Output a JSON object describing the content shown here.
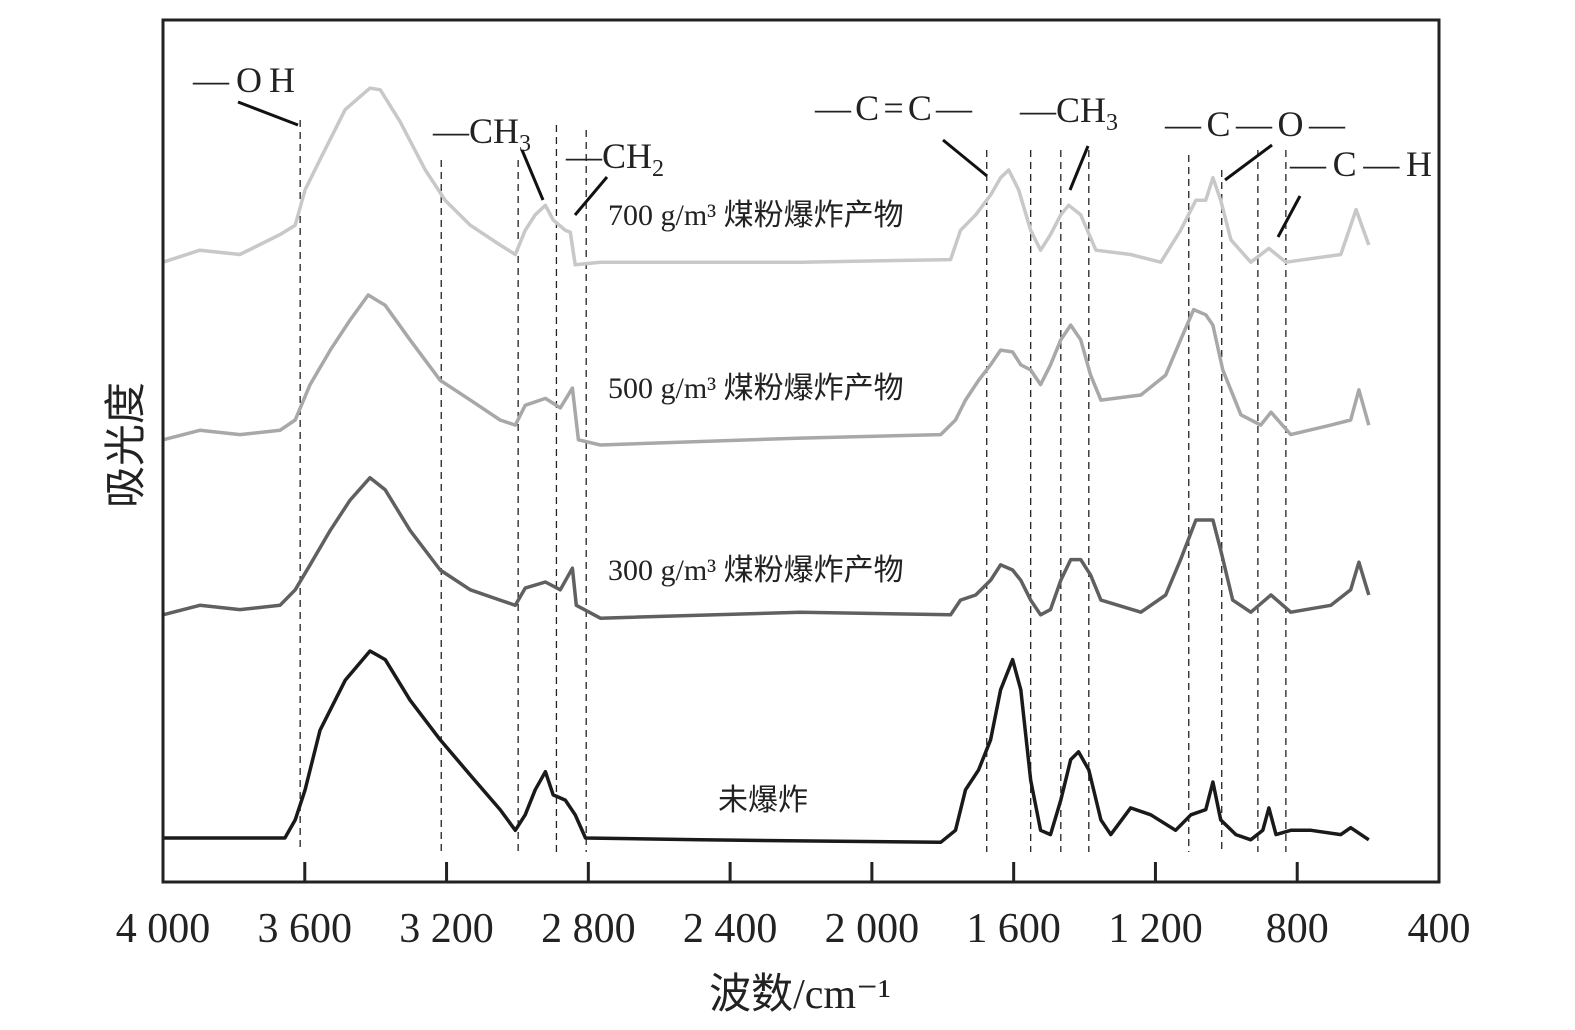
{
  "chart_data": {
    "type": "line",
    "xlabel": "波数/cm⁻¹",
    "ylabel": "吸光度",
    "xlim": [
      4000,
      400
    ],
    "ylim": [
      0,
      10
    ],
    "x_reversed": true,
    "grid": false,
    "legend": "none; series labeled inline above each curve",
    "tick_values": [
      4000,
      3600,
      3200,
      2800,
      2400,
      2000,
      1600,
      1200,
      800,
      400
    ],
    "tick_labels": [
      "4 000",
      "3 600",
      "3 200",
      "2 800",
      "2 400",
      "2 000",
      "1 600",
      "1 200",
      "800",
      "400"
    ],
    "reference_lines": [
      3613,
      3215,
      2998,
      2890,
      2806,
      1676,
      1552,
      1467,
      1388,
      1106,
      1013,
      911,
      832
    ],
    "annotations": [
      {
        "main": "—OH",
        "sub": "",
        "tail": ""
      },
      {
        "main": "—CH",
        "sub": "3",
        "tail": ""
      },
      {
        "main": "—CH",
        "sub": "2",
        "tail": ""
      },
      {
        "main": "—C=C—",
        "sub": "",
        "tail": ""
      },
      {
        "main": "—CH",
        "sub": "3",
        "tail": ""
      },
      {
        "main": "—C—O—",
        "sub": "",
        "tail": ""
      },
      {
        "main": "—C—H",
        "sub": "",
        "tail": ""
      }
    ],
    "series": [
      {
        "name": "700 g/m³ 煤粉爆炸产物",
        "color": "#c8c8c8",
        "points": [
          [
            4000,
            7.19
          ],
          [
            3896,
            7.33
          ],
          [
            3783,
            7.28
          ],
          [
            3670,
            7.51
          ],
          [
            3627,
            7.62
          ],
          [
            3599,
            8.03
          ],
          [
            3557,
            8.38
          ],
          [
            3486,
            8.96
          ],
          [
            3416,
            9.21
          ],
          [
            3387,
            9.19
          ],
          [
            3331,
            8.82
          ],
          [
            3260,
            8.26
          ],
          [
            3204,
            7.91
          ],
          [
            3133,
            7.62
          ],
          [
            3049,
            7.39
          ],
          [
            3006,
            7.28
          ],
          [
            2978,
            7.56
          ],
          [
            2950,
            7.74
          ],
          [
            2921,
            7.85
          ],
          [
            2899,
            7.68
          ],
          [
            2865,
            7.56
          ],
          [
            2851,
            7.54
          ],
          [
            2837,
            7.16
          ],
          [
            2766,
            7.19
          ],
          [
            2201,
            7.19
          ],
          [
            1778,
            7.22
          ],
          [
            1750,
            7.56
          ],
          [
            1707,
            7.74
          ],
          [
            1665,
            7.97
          ],
          [
            1637,
            8.17
          ],
          [
            1614,
            8.26
          ],
          [
            1586,
            8.03
          ],
          [
            1552,
            7.56
          ],
          [
            1524,
            7.33
          ],
          [
            1496,
            7.51
          ],
          [
            1467,
            7.74
          ],
          [
            1445,
            7.85
          ],
          [
            1411,
            7.74
          ],
          [
            1368,
            7.33
          ],
          [
            1270,
            7.28
          ],
          [
            1185,
            7.19
          ],
          [
            1129,
            7.56
          ],
          [
            1086,
            7.91
          ],
          [
            1058,
            7.91
          ],
          [
            1038,
            8.17
          ],
          [
            1016,
            7.91
          ],
          [
            987,
            7.45
          ],
          [
            931,
            7.19
          ],
          [
            880,
            7.35
          ],
          [
            832,
            7.19
          ],
          [
            677,
            7.28
          ],
          [
            634,
            7.8
          ],
          [
            598,
            7.39
          ]
        ]
      },
      {
        "name": "500 g/m³ 煤粉爆炸产物",
        "color": "#a8a8a8",
        "points": [
          [
            4000,
            5.13
          ],
          [
            3896,
            5.24
          ],
          [
            3783,
            5.19
          ],
          [
            3670,
            5.24
          ],
          [
            3627,
            5.36
          ],
          [
            3585,
            5.77
          ],
          [
            3528,
            6.17
          ],
          [
            3472,
            6.52
          ],
          [
            3421,
            6.81
          ],
          [
            3373,
            6.69
          ],
          [
            3303,
            6.29
          ],
          [
            3218,
            5.82
          ],
          [
            3133,
            5.59
          ],
          [
            3049,
            5.36
          ],
          [
            3006,
            5.3
          ],
          [
            2978,
            5.53
          ],
          [
            2921,
            5.61
          ],
          [
            2879,
            5.5
          ],
          [
            2845,
            5.73
          ],
          [
            2828,
            5.13
          ],
          [
            2766,
            5.07
          ],
          [
            2201,
            5.15
          ],
          [
            1806,
            5.19
          ],
          [
            1764,
            5.36
          ],
          [
            1736,
            5.59
          ],
          [
            1699,
            5.82
          ],
          [
            1665,
            6.0
          ],
          [
            1637,
            6.17
          ],
          [
            1603,
            6.15
          ],
          [
            1580,
            6.0
          ],
          [
            1552,
            5.94
          ],
          [
            1524,
            5.77
          ],
          [
            1496,
            6.0
          ],
          [
            1467,
            6.29
          ],
          [
            1439,
            6.46
          ],
          [
            1411,
            6.29
          ],
          [
            1383,
            5.88
          ],
          [
            1354,
            5.59
          ],
          [
            1241,
            5.65
          ],
          [
            1171,
            5.88
          ],
          [
            1129,
            6.29
          ],
          [
            1092,
            6.64
          ],
          [
            1058,
            6.58
          ],
          [
            1038,
            6.46
          ],
          [
            1010,
            5.94
          ],
          [
            959,
            5.42
          ],
          [
            903,
            5.3
          ],
          [
            874,
            5.45
          ],
          [
            818,
            5.19
          ],
          [
            705,
            5.3
          ],
          [
            649,
            5.36
          ],
          [
            626,
            5.71
          ],
          [
            598,
            5.3
          ]
        ]
      },
      {
        "name": "300 g/m³ 煤粉爆炸产物",
        "color": "#606060",
        "points": [
          [
            4000,
            3.1
          ],
          [
            3896,
            3.21
          ],
          [
            3783,
            3.16
          ],
          [
            3670,
            3.21
          ],
          [
            3627,
            3.39
          ],
          [
            3585,
            3.68
          ],
          [
            3528,
            4.08
          ],
          [
            3472,
            4.43
          ],
          [
            3416,
            4.69
          ],
          [
            3373,
            4.55
          ],
          [
            3303,
            4.08
          ],
          [
            3218,
            3.62
          ],
          [
            3133,
            3.39
          ],
          [
            3049,
            3.27
          ],
          [
            3006,
            3.21
          ],
          [
            2978,
            3.41
          ],
          [
            2921,
            3.48
          ],
          [
            2879,
            3.39
          ],
          [
            2845,
            3.64
          ],
          [
            2834,
            3.21
          ],
          [
            2766,
            3.06
          ],
          [
            2201,
            3.13
          ],
          [
            1778,
            3.1
          ],
          [
            1750,
            3.27
          ],
          [
            1707,
            3.33
          ],
          [
            1665,
            3.5
          ],
          [
            1637,
            3.68
          ],
          [
            1603,
            3.62
          ],
          [
            1580,
            3.5
          ],
          [
            1552,
            3.27
          ],
          [
            1524,
            3.1
          ],
          [
            1496,
            3.16
          ],
          [
            1467,
            3.5
          ],
          [
            1439,
            3.74
          ],
          [
            1411,
            3.74
          ],
          [
            1383,
            3.56
          ],
          [
            1354,
            3.27
          ],
          [
            1241,
            3.13
          ],
          [
            1171,
            3.33
          ],
          [
            1129,
            3.74
          ],
          [
            1086,
            4.2
          ],
          [
            1058,
            4.2
          ],
          [
            1038,
            4.2
          ],
          [
            1016,
            3.85
          ],
          [
            982,
            3.27
          ],
          [
            931,
            3.13
          ],
          [
            874,
            3.33
          ],
          [
            818,
            3.13
          ],
          [
            705,
            3.21
          ],
          [
            649,
            3.39
          ],
          [
            626,
            3.71
          ],
          [
            598,
            3.33
          ]
        ]
      },
      {
        "name": "未爆炸",
        "color": "#1a1a1a",
        "points": [
          [
            4000,
            0.51
          ],
          [
            3656,
            0.51
          ],
          [
            3627,
            0.72
          ],
          [
            3599,
            1.07
          ],
          [
            3557,
            1.76
          ],
          [
            3486,
            2.34
          ],
          [
            3416,
            2.68
          ],
          [
            3373,
            2.58
          ],
          [
            3303,
            2.11
          ],
          [
            3218,
            1.65
          ],
          [
            3133,
            1.24
          ],
          [
            3049,
            0.84
          ],
          [
            3006,
            0.6
          ],
          [
            2978,
            0.78
          ],
          [
            2950,
            1.07
          ],
          [
            2921,
            1.28
          ],
          [
            2899,
            1.01
          ],
          [
            2865,
            0.95
          ],
          [
            2837,
            0.78
          ],
          [
            2808,
            0.51
          ],
          [
            2484,
            0.49
          ],
          [
            1806,
            0.46
          ],
          [
            1764,
            0.6
          ],
          [
            1736,
            1.07
          ],
          [
            1699,
            1.3
          ],
          [
            1665,
            1.65
          ],
          [
            1637,
            2.23
          ],
          [
            1603,
            2.58
          ],
          [
            1580,
            2.23
          ],
          [
            1552,
            1.18
          ],
          [
            1524,
            0.6
          ],
          [
            1496,
            0.55
          ],
          [
            1467,
            0.95
          ],
          [
            1439,
            1.42
          ],
          [
            1417,
            1.51
          ],
          [
            1388,
            1.3
          ],
          [
            1354,
            0.72
          ],
          [
            1326,
            0.55
          ],
          [
            1270,
            0.86
          ],
          [
            1213,
            0.78
          ],
          [
            1143,
            0.6
          ],
          [
            1100,
            0.78
          ],
          [
            1058,
            0.84
          ],
          [
            1038,
            1.16
          ],
          [
            1016,
            0.72
          ],
          [
            973,
            0.55
          ],
          [
            931,
            0.49
          ],
          [
            897,
            0.6
          ],
          [
            880,
            0.86
          ],
          [
            860,
            0.55
          ],
          [
            818,
            0.6
          ],
          [
            761,
            0.6
          ],
          [
            677,
            0.55
          ],
          [
            649,
            0.63
          ],
          [
            598,
            0.49
          ]
        ]
      }
    ]
  }
}
